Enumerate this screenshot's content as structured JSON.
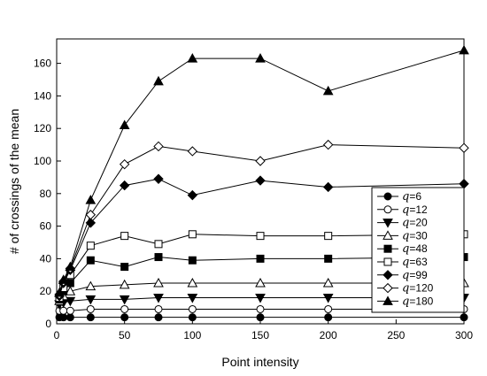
{
  "chart_data": {
    "type": "line",
    "title": "",
    "xlabel": "Point intensity",
    "ylabel": "# of crossings of the mean",
    "xlim": [
      0,
      300
    ],
    "ylim": [
      0,
      175
    ],
    "xticks": [
      "0",
      "50",
      "100",
      "150",
      "200",
      "250",
      "300"
    ],
    "yticks": [
      "0",
      "20",
      "40",
      "60",
      "80",
      "100",
      "120",
      "140",
      "160"
    ],
    "grid": false,
    "legend_position": "right",
    "x": [
      2,
      5,
      10,
      25,
      50,
      75,
      100,
      150,
      200,
      300
    ],
    "series": [
      {
        "name": "q=6",
        "legend_symbol": "q",
        "legend_value": "=6",
        "marker": "circle-filled",
        "values": [
          4,
          4,
          4,
          4,
          4,
          4,
          4,
          4,
          4,
          4
        ]
      },
      {
        "name": "q=12",
        "legend_symbol": "q",
        "legend_value": "=12",
        "marker": "circle-open",
        "values": [
          8,
          8,
          8,
          9,
          9,
          9,
          9,
          9,
          9,
          9
        ]
      },
      {
        "name": "q=20",
        "legend_symbol": "q",
        "legend_value": "=20",
        "marker": "triangle-down-filled",
        "values": [
          12,
          13,
          14,
          15,
          15,
          16,
          16,
          16,
          16,
          16
        ]
      },
      {
        "name": "q=30",
        "legend_symbol": "q",
        "legend_value": "=30",
        "marker": "triangle-up-open",
        "values": [
          14,
          17,
          20,
          23,
          24,
          25,
          25,
          25,
          25,
          25
        ]
      },
      {
        "name": "q=48",
        "legend_symbol": "q",
        "legend_value": "=48",
        "marker": "square-filled",
        "values": [
          15,
          20,
          25,
          39,
          35,
          41,
          39,
          40,
          40,
          41
        ]
      },
      {
        "name": "q=63",
        "legend_symbol": "q",
        "legend_value": "=63",
        "marker": "square-open",
        "values": [
          16,
          22,
          30,
          48,
          54,
          49,
          55,
          54,
          54,
          55
        ]
      },
      {
        "name": "q=99",
        "legend_symbol": "q",
        "legend_value": "=99",
        "marker": "diamond-filled",
        "values": [
          17,
          25,
          33,
          62,
          85,
          89,
          79,
          88,
          84,
          86
        ]
      },
      {
        "name": "q=120",
        "legend_symbol": "q",
        "legend_value": "=120",
        "marker": "diamond-open",
        "values": [
          18,
          26,
          34,
          67,
          98,
          109,
          106,
          100,
          110,
          108
        ]
      },
      {
        "name": "q=180",
        "legend_symbol": "q",
        "legend_value": "=180",
        "marker": "triangle-up-filled",
        "values": [
          19,
          27,
          35,
          76,
          122,
          149,
          163,
          163,
          143,
          168
        ]
      }
    ]
  }
}
